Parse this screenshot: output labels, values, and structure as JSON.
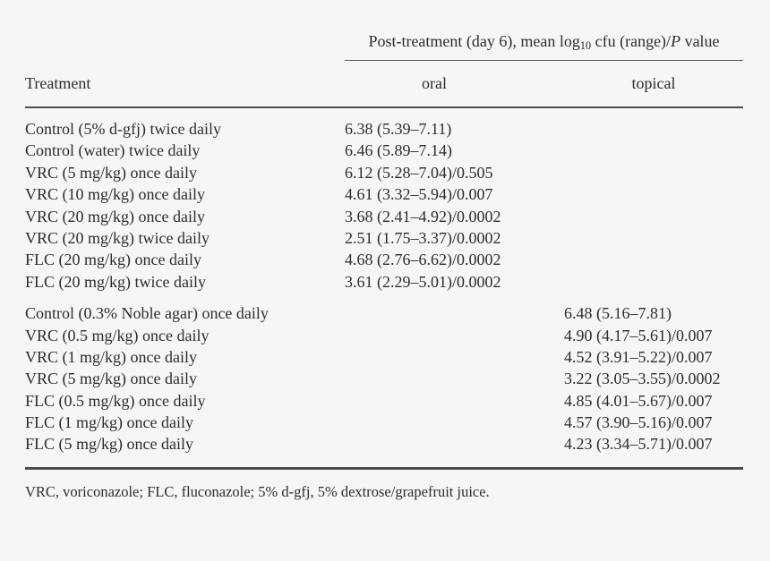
{
  "table": {
    "span_header": {
      "part1": "Post-treatment (day 6), mean log",
      "sub": "10",
      "part2": " cfu (range)/",
      "italic": "P",
      "part3": " value"
    },
    "columns": {
      "treatment": "Treatment",
      "oral": "oral",
      "topical": "topical"
    },
    "oral_rows": [
      {
        "treatment": "Control (5% d-gfj) twice daily",
        "value": "6.38 (5.39–7.11)"
      },
      {
        "treatment": "Control (water) twice daily",
        "value": "6.46 (5.89–7.14)"
      },
      {
        "treatment": "VRC (5 mg/kg) once daily",
        "value": "6.12 (5.28–7.04)/0.505"
      },
      {
        "treatment": "VRC (10 mg/kg) once daily",
        "value": "4.61 (3.32–5.94)/0.007"
      },
      {
        "treatment": "VRC (20 mg/kg) once daily",
        "value": "3.68 (2.41–4.92)/0.0002"
      },
      {
        "treatment": "VRC (20 mg/kg) twice daily",
        "value": "2.51 (1.75–3.37)/0.0002"
      },
      {
        "treatment": "FLC (20 mg/kg) once daily",
        "value": "4.68 (2.76–6.62)/0.0002"
      },
      {
        "treatment": "FLC (20 mg/kg) twice daily",
        "value": "3.61 (2.29–5.01)/0.0002"
      }
    ],
    "topical_rows": [
      {
        "treatment": "Control (0.3% Noble agar) once daily",
        "value": "6.48 (5.16–7.81)"
      },
      {
        "treatment": "VRC (0.5 mg/kg) once daily",
        "value": "4.90 (4.17–5.61)/0.007"
      },
      {
        "treatment": "VRC (1 mg/kg) once daily",
        "value": "4.52 (3.91–5.22)/0.007"
      },
      {
        "treatment": "VRC (5 mg/kg) once daily",
        "value": "3.22 (3.05–3.55)/0.0002"
      },
      {
        "treatment": "FLC (0.5 mg/kg) once daily",
        "value": "4.85 (4.01–5.67)/0.007"
      },
      {
        "treatment": "FLC (1 mg/kg) once daily",
        "value": "4.57 (3.90–5.16)/0.007"
      },
      {
        "treatment": "FLC (5 mg/kg) once daily",
        "value": "4.23 (3.34–5.71)/0.007"
      }
    ],
    "footnote": "VRC, voriconazole; FLC, fluconazole; 5% d-gfj, 5% dextrose/grapefruit juice."
  },
  "colors": {
    "background": "#f6f6f6",
    "text": "#2d2d2d",
    "rule": "#4c4c4c"
  }
}
